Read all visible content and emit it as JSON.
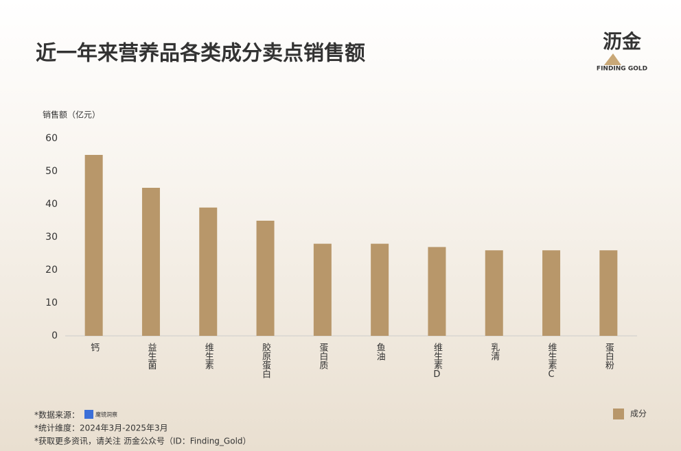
{
  "header": {
    "title": "近一年来营养品各类成分卖点销售额",
    "brand": "沥金",
    "brand_sub": "FINDING GOLD"
  },
  "chart_data": {
    "type": "bar",
    "y_label": "销售额（亿元）",
    "categories": [
      "钙",
      "益生菌",
      "维生素",
      "胶原蛋白",
      "蛋白质",
      "鱼油",
      "维生素D",
      "乳清",
      "维生素C",
      "蛋白粉"
    ],
    "series": [
      {
        "name": "成分",
        "color": "#b8976a",
        "values": [
          55,
          45,
          39,
          35,
          28,
          28,
          27,
          26,
          26,
          26
        ]
      }
    ],
    "ylim": [
      0,
      60
    ],
    "yticks": [
      0,
      10,
      20,
      30,
      40,
      50,
      60
    ],
    "grid": false,
    "legend": "bottom-right"
  },
  "footer": {
    "source_label": "*数据来源：",
    "source_logo": "魔镜洞察",
    "period": "*统计维度：2024年3月-2025年3月",
    "more": "*获取更多资讯，请关注",
    "account": "沥金公众号（ID：Finding_Gold）"
  }
}
